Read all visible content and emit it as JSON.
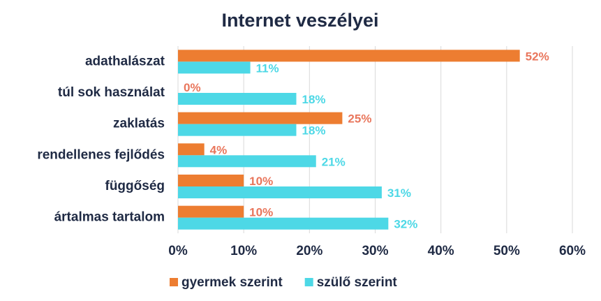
{
  "chart_data": {
    "type": "bar",
    "orientation": "horizontal",
    "title": "Internet veszélyei",
    "categories": [
      "adathalászat",
      "túl sok használat",
      "zaklatás",
      "rendellenes fejlődés",
      "függőség",
      "ártalmas tartalom"
    ],
    "series": [
      {
        "name": "gyermek szerint",
        "color": "#ED7D31",
        "label_color": "#E9765C",
        "values": [
          52,
          0,
          25,
          4,
          10,
          10
        ],
        "value_labels": [
          "52%",
          "0%",
          "25%",
          "4%",
          "10%",
          "10%"
        ]
      },
      {
        "name": "szülő szerint",
        "color": "#4DD8E6",
        "label_color": "#4DD8E6",
        "values": [
          11,
          18,
          18,
          21,
          31,
          32
        ],
        "value_labels": [
          "11%",
          "18%",
          "18%",
          "21%",
          "31%",
          "32%"
        ]
      }
    ],
    "xlim": [
      0,
      60
    ],
    "xticks": [
      {
        "value": 0,
        "label": "0%"
      },
      {
        "value": 10,
        "label": "10%"
      },
      {
        "value": 20,
        "label": "20%"
      },
      {
        "value": 30,
        "label": "30%"
      },
      {
        "value": 40,
        "label": "40%"
      },
      {
        "value": 50,
        "label": "50%"
      },
      {
        "value": 60,
        "label": "60%"
      }
    ],
    "grid": true,
    "legend": "bottom"
  }
}
